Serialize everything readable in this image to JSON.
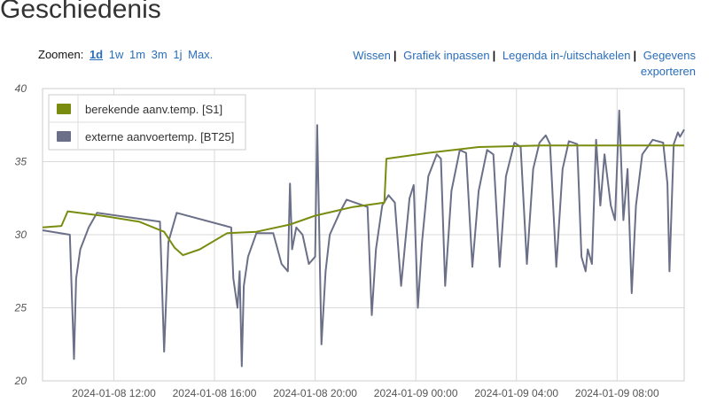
{
  "header": {
    "title": "Geschiedenis"
  },
  "zoom": {
    "label": "Zoomen:",
    "options": [
      "1d",
      "1w",
      "1m",
      "3m",
      "1j",
      "Max."
    ],
    "active": "1d"
  },
  "actions": {
    "clear": "Wissen",
    "fit": "Grafiek inpassen",
    "legend_toggle": "Legenda in-/uitschakelen",
    "export": "Gegevens exporteren"
  },
  "colors": {
    "s1": "#7a8c10",
    "bt25": "#6b7088",
    "grid": "#d9d9d9"
  },
  "chart_data": {
    "type": "line",
    "ylim": [
      20,
      40
    ],
    "yticks": [
      20,
      25,
      30,
      35,
      40
    ],
    "x_ticks": [
      "2024-01-08 12:00",
      "2024-01-08 16:00",
      "2024-01-08 20:00",
      "2024-01-09 00:00",
      "2024-01-09 04:00",
      "2024-01-09 08:00"
    ],
    "xlim": [
      "2024-01-08 09:10",
      "2024-01-09 10:40"
    ],
    "grid": true,
    "legend_position": "top-left",
    "series": [
      {
        "name": "berekende aanv.temp. [S1]",
        "color": "#7a8c10",
        "points": [
          [
            "2024-01-08 09:10",
            30.5
          ],
          [
            "2024-01-08 09:55",
            30.6
          ],
          [
            "2024-01-08 10:10",
            31.6
          ],
          [
            "2024-01-08 11:30",
            31.3
          ],
          [
            "2024-01-08 13:00",
            30.9
          ],
          [
            "2024-01-08 14:00",
            30.2
          ],
          [
            "2024-01-08 14:25",
            29.1
          ],
          [
            "2024-01-08 14:45",
            28.6
          ],
          [
            "2024-01-08 15:25",
            29.0
          ],
          [
            "2024-01-08 16:30",
            30.1
          ],
          [
            "2024-01-08 17:40",
            30.2
          ],
          [
            "2024-01-08 19:00",
            30.7
          ],
          [
            "2024-01-08 20:00",
            31.3
          ],
          [
            "2024-01-08 21:30",
            31.9
          ],
          [
            "2024-01-08 22:45",
            32.2
          ],
          [
            "2024-01-08 22:50",
            35.2
          ],
          [
            "2024-01-09 00:30",
            35.6
          ],
          [
            "2024-01-09 02:30",
            36.0
          ],
          [
            "2024-01-09 05:00",
            36.1
          ],
          [
            "2024-01-09 10:40",
            36.1
          ]
        ]
      },
      {
        "name": "externe aanvoertemp. [BT25]",
        "color": "#6b7088",
        "points": [
          [
            "2024-01-08 09:10",
            30.3
          ],
          [
            "2024-01-08 10:15",
            30.0
          ],
          [
            "2024-01-08 10:25",
            21.5
          ],
          [
            "2024-01-08 10:30",
            27.0
          ],
          [
            "2024-01-08 10:40",
            29.0
          ],
          [
            "2024-01-08 11:00",
            30.5
          ],
          [
            "2024-01-08 11:20",
            31.5
          ],
          [
            "2024-01-08 13:50",
            30.9
          ],
          [
            "2024-01-08 14:00",
            22.0
          ],
          [
            "2024-01-08 14:10",
            29.5
          ],
          [
            "2024-01-08 14:30",
            31.5
          ],
          [
            "2024-01-08 16:40",
            30.5
          ],
          [
            "2024-01-08 16:45",
            27.0
          ],
          [
            "2024-01-08 16:55",
            25.0
          ],
          [
            "2024-01-08 17:00",
            27.5
          ],
          [
            "2024-01-08 17:05",
            21.0
          ],
          [
            "2024-01-08 17:10",
            26.5
          ],
          [
            "2024-01-08 17:20",
            28.5
          ],
          [
            "2024-01-08 17:40",
            30.1
          ],
          [
            "2024-01-08 18:20",
            30.1
          ],
          [
            "2024-01-08 18:40",
            28.0
          ],
          [
            "2024-01-08 18:55",
            27.5
          ],
          [
            "2024-01-08 19:00",
            33.5
          ],
          [
            "2024-01-08 19:05",
            29.0
          ],
          [
            "2024-01-08 19:15",
            30.5
          ],
          [
            "2024-01-08 19:30",
            30.0
          ],
          [
            "2024-01-08 19:45",
            28.0
          ],
          [
            "2024-01-08 20:00",
            28.5
          ],
          [
            "2024-01-08 20:05",
            37.5
          ],
          [
            "2024-01-08 20:15",
            22.5
          ],
          [
            "2024-01-08 20:25",
            27.5
          ],
          [
            "2024-01-08 20:35",
            30.0
          ],
          [
            "2024-01-08 21:00",
            31.6
          ],
          [
            "2024-01-08 21:15",
            32.4
          ],
          [
            "2024-01-08 22:05",
            31.9
          ],
          [
            "2024-01-08 22:15",
            24.5
          ],
          [
            "2024-01-08 22:25",
            29.0
          ],
          [
            "2024-01-08 22:40",
            32.0
          ],
          [
            "2024-01-08 22:55",
            32.7
          ],
          [
            "2024-01-08 23:10",
            32.2
          ],
          [
            "2024-01-08 23:25",
            26.5
          ],
          [
            "2024-01-08 23:35",
            29.5
          ],
          [
            "2024-01-08 23:45",
            32.5
          ],
          [
            "2024-01-08 23:55",
            33.4
          ],
          [
            "2024-01-09 00:05",
            25.0
          ],
          [
            "2024-01-09 00:15",
            29.5
          ],
          [
            "2024-01-09 00:30",
            34.0
          ],
          [
            "2024-01-09 00:50",
            35.5
          ],
          [
            "2024-01-09 01:00",
            35.2
          ],
          [
            "2024-01-09 01:10",
            26.5
          ],
          [
            "2024-01-09 01:25",
            33.0
          ],
          [
            "2024-01-09 01:45",
            35.8
          ],
          [
            "2024-01-09 02:00",
            35.6
          ],
          [
            "2024-01-09 02:15",
            27.8
          ],
          [
            "2024-01-09 02:30",
            33.0
          ],
          [
            "2024-01-09 02:50",
            35.8
          ],
          [
            "2024-01-09 03:05",
            35.5
          ],
          [
            "2024-01-09 03:20",
            27.8
          ],
          [
            "2024-01-09 03:35",
            34.0
          ],
          [
            "2024-01-09 03:55",
            36.3
          ],
          [
            "2024-01-09 04:10",
            36.0
          ],
          [
            "2024-01-09 04:25",
            28.0
          ],
          [
            "2024-01-09 04:40",
            34.5
          ],
          [
            "2024-01-09 04:55",
            36.3
          ],
          [
            "2024-01-09 05:10",
            36.8
          ],
          [
            "2024-01-09 05:20",
            36.2
          ],
          [
            "2024-01-09 05:35",
            27.8
          ],
          [
            "2024-01-09 05:50",
            34.5
          ],
          [
            "2024-01-09 06:05",
            36.4
          ],
          [
            "2024-01-09 06:25",
            36.2
          ],
          [
            "2024-01-09 06:35",
            28.5
          ],
          [
            "2024-01-09 06:45",
            27.5
          ],
          [
            "2024-01-09 06:50",
            29.0
          ],
          [
            "2024-01-09 07:00",
            28.0
          ],
          [
            "2024-01-09 07:10",
            36.5
          ],
          [
            "2024-01-09 07:20",
            32.0
          ],
          [
            "2024-01-09 07:30",
            35.5
          ],
          [
            "2024-01-09 07:45",
            32.0
          ],
          [
            "2024-01-09 07:55",
            31.0
          ],
          [
            "2024-01-09 08:05",
            38.5
          ],
          [
            "2024-01-09 08:15",
            31.0
          ],
          [
            "2024-01-09 08:25",
            34.5
          ],
          [
            "2024-01-09 08:35",
            26.0
          ],
          [
            "2024-01-09 08:45",
            32.0
          ],
          [
            "2024-01-09 09:00",
            35.5
          ],
          [
            "2024-01-09 09:25",
            36.5
          ],
          [
            "2024-01-09 09:50",
            36.3
          ],
          [
            "2024-01-09 10:00",
            33.5
          ],
          [
            "2024-01-09 10:05",
            27.5
          ],
          [
            "2024-01-09 10:15",
            36.2
          ],
          [
            "2024-01-09 10:25",
            37.0
          ],
          [
            "2024-01-09 10:30",
            36.7
          ],
          [
            "2024-01-09 10:40",
            37.2
          ]
        ]
      }
    ]
  }
}
